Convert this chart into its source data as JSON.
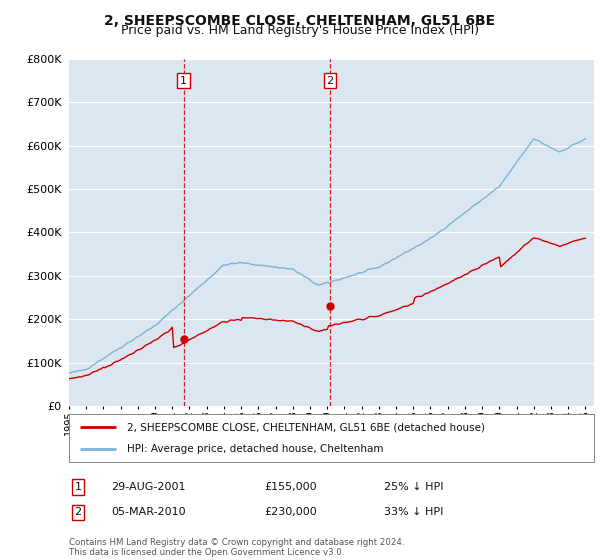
{
  "title": "2, SHEEPSCOMBE CLOSE, CHELTENHAM, GL51 6BE",
  "subtitle": "Price paid vs. HM Land Registry's House Price Index (HPI)",
  "footnote": "Contains HM Land Registry data © Crown copyright and database right 2024.\nThis data is licensed under the Open Government Licence v3.0.",
  "legend_line1": "2, SHEEPSCOMBE CLOSE, CHELTENHAM, GL51 6BE (detached house)",
  "legend_line2": "HPI: Average price, detached house, Cheltenham",
  "sale1_date": "29-AUG-2001",
  "sale1_price": "£155,000",
  "sale1_hpi": "25% ↓ HPI",
  "sale1_year": 2001.66,
  "sale1_value": 155000,
  "sale2_date": "05-MAR-2010",
  "sale2_price": "£230,000",
  "sale2_hpi": "33% ↓ HPI",
  "sale2_year": 2010.17,
  "sale2_value": 230000,
  "ylim": [
    0,
    800000
  ],
  "yticks": [
    0,
    100000,
    200000,
    300000,
    400000,
    500000,
    600000,
    700000,
    800000
  ],
  "background_color": "#ffffff",
  "plot_bg_color": "#dce6f1",
  "grid_color": "#ffffff",
  "hpi_color": "#7ab3d4",
  "price_color": "#cc0000",
  "vline_color": "#cc0000",
  "title_fontsize": 10,
  "subtitle_fontsize": 9
}
